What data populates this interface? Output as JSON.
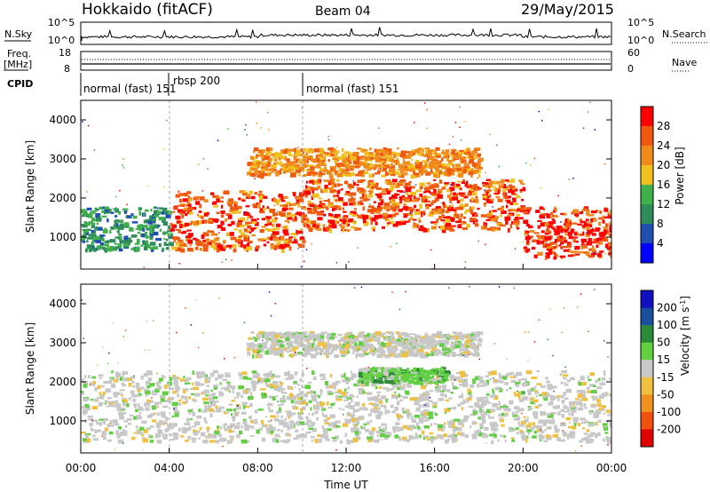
{
  "header": {
    "station": "Hokkaido (fitACF)",
    "beam": "Beam 04",
    "date": "29/May/2015"
  },
  "noise_panel": {
    "left_label": "N.Sky",
    "right_label": "N.Search",
    "left_ticks": [
      "10^5",
      "10^0"
    ],
    "right_ticks": [
      "10^5",
      "10^0"
    ]
  },
  "freq_panel": {
    "left_label": "Freq.",
    "left_unit": "[MHz]",
    "right_label": "Nave",
    "left_ticks": [
      "18",
      "8"
    ],
    "right_ticks": [
      "60",
      "0"
    ]
  },
  "cpid": {
    "label": "CPID",
    "modes": [
      {
        "name": "normal (fast) 151",
        "start_hour": 0,
        "end_hour": 4
      },
      {
        "name": "rbsp 200",
        "start_hour": 4,
        "end_hour": 10
      },
      {
        "name": "normal (fast) 151",
        "start_hour": 10,
        "end_hour": 24
      }
    ]
  },
  "colors": {
    "power": [
      "#0000ff",
      "#1f4fb0",
      "#2e8c5a",
      "#3fb04a",
      "#f0c020",
      "#f08a1a",
      "#f05a10",
      "#ff0000"
    ],
    "velocity": [
      "#1010c0",
      "#1a4fa0",
      "#2a8a3a",
      "#60d040",
      "#c8c8c8",
      "#f0c040",
      "#f09020",
      "#f05010",
      "#e00000"
    ]
  },
  "chart_data": [
    {
      "type": "heatmap",
      "name": "power",
      "ylabel": "Slant Range [km]",
      "yticks": [
        "1000",
        "2000",
        "3000",
        "4000"
      ],
      "ylim": [
        180,
        4500
      ],
      "xlim": [
        0,
        24
      ],
      "colorbar_label": "Power [dB]",
      "colorbar_ticks": [
        "28",
        "24",
        "20",
        "16",
        "12",
        "8",
        "4"
      ],
      "bands": [
        {
          "start_hour": 0.0,
          "end_hour": 4.0,
          "range_start_km": 700,
          "range_end_km": 1800,
          "level": "green-blue"
        },
        {
          "start_hour": 4.0,
          "end_hour": 10.0,
          "range_start_km": 700,
          "range_end_km": 2200,
          "level": "orange-red"
        },
        {
          "start_hour": 10.0,
          "end_hour": 20.0,
          "range_start_km": 1200,
          "range_end_km": 2500,
          "level": "orange-red"
        },
        {
          "start_hour": 20.0,
          "end_hour": 24.0,
          "range_start_km": 500,
          "range_end_km": 1800,
          "level": "red"
        },
        {
          "start_hour": 7.5,
          "end_hour": 18.0,
          "range_start_km": 2600,
          "range_end_km": 3300,
          "level": "orange"
        }
      ]
    },
    {
      "type": "heatmap",
      "name": "velocity",
      "ylabel": "Slant Range [km]",
      "xlabel": "Time UT",
      "xticks": [
        "00:00",
        "04:00",
        "08:00",
        "12:00",
        "16:00",
        "20:00",
        "00:00"
      ],
      "yticks": [
        "1000",
        "2000",
        "3000",
        "4000"
      ],
      "ylim": [
        180,
        4500
      ],
      "xlim": [
        0,
        24
      ],
      "colorbar_label": "Velocity [m s",
      "colorbar_label_sup": "-1",
      "colorbar_label_end": "]",
      "colorbar_ticks": [
        "200",
        "100",
        "50",
        "15",
        "-15",
        "-50",
        "-100",
        "-200"
      ],
      "bands": [
        {
          "start_hour": 0.0,
          "end_hour": 24.0,
          "range_start_km": 500,
          "range_end_km": 2300,
          "level": "grey"
        },
        {
          "start_hour": 12.5,
          "end_hour": 16.5,
          "range_start_km": 2000,
          "range_end_km": 2400,
          "level": "green"
        },
        {
          "start_hour": 7.5,
          "end_hour": 18.0,
          "range_start_km": 2700,
          "range_end_km": 3300,
          "level": "grey"
        }
      ]
    }
  ]
}
